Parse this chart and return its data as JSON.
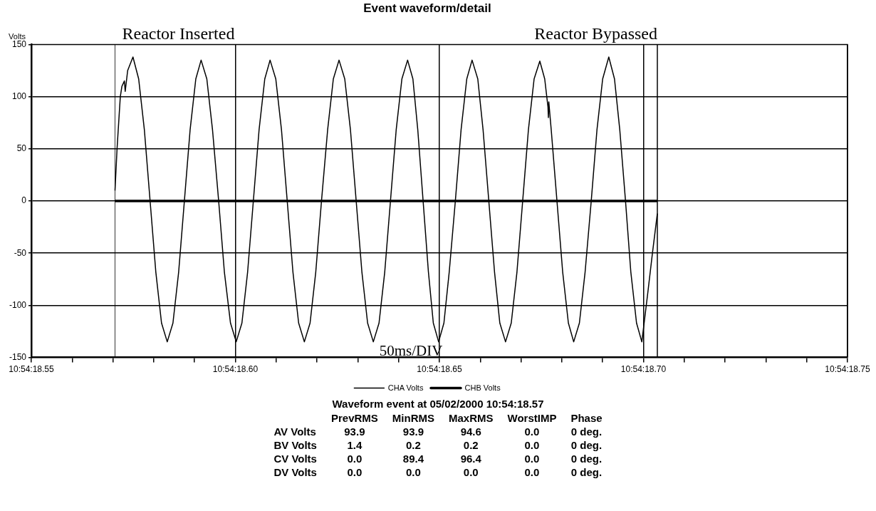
{
  "chart_data": [
    {
      "type": "line",
      "title": "Event waveform/detail",
      "ylabel": "Volts",
      "series": [
        {
          "name": "CHA Volts",
          "color": "#000000",
          "x": [
            "2000-05-02T10:54:18.5705",
            "2000-05-02T10:54:18.5710",
            "2000-05-02T10:54:18.5718",
            "2000-05-02T10:54:18.5722",
            "2000-05-02T10:54:18.5728",
            "2000-05-02T10:54:18.5730",
            "2000-05-02T10:54:18.5736",
            "2000-05-02T10:54:18.5749",
            "2000-05-02T10:54:18.5763",
            "2000-05-02T10:54:18.5777",
            "2000-05-02T10:54:18.5791",
            "2000-05-02T10:54:18.5805",
            "2000-05-02T10:54:18.5819",
            "2000-05-02T10:54:18.5833",
            "2000-05-02T10:54:18.5847",
            "2000-05-02T10:54:18.5861",
            "2000-05-02T10:54:18.5875",
            "2000-05-02T10:54:18.5889",
            "2000-05-02T10:54:18.5903",
            "2000-05-02T10:54:18.5916",
            "2000-05-02T10:54:18.5930",
            "2000-05-02T10:54:18.5944",
            "2000-05-02T10:54:18.5959",
            "2000-05-02T10:54:18.5973",
            "2000-05-02T10:54:18.5988",
            "2000-05-02T10:54:18.6002",
            "2000-05-02T10:54:18.6016",
            "2000-05-02T10:54:18.6030",
            "2000-05-02T10:54:18.6044",
            "2000-05-02T10:54:18.6058",
            "2000-05-02T10:54:18.6072",
            "2000-05-02T10:54:18.6085",
            "2000-05-02T10:54:18.6099",
            "2000-05-02T10:54:18.6113",
            "2000-05-02T10:54:18.6127",
            "2000-05-02T10:54:18.6141",
            "2000-05-02T10:54:18.6155",
            "2000-05-02T10:54:18.6169",
            "2000-05-02T10:54:18.6183",
            "2000-05-02T10:54:18.6197",
            "2000-05-02T10:54:18.6211",
            "2000-05-02T10:54:18.6226",
            "2000-05-02T10:54:18.6240",
            "2000-05-02T10:54:18.6254",
            "2000-05-02T10:54:18.6268",
            "2000-05-02T10:54:18.6282",
            "2000-05-02T10:54:18.6296",
            "2000-05-02T10:54:18.6310",
            "2000-05-02T10:54:18.6324",
            "2000-05-02T10:54:18.6338",
            "2000-05-02T10:54:18.6352",
            "2000-05-02T10:54:18.6366",
            "2000-05-02T10:54:18.6380",
            "2000-05-02T10:54:18.6394",
            "2000-05-02T10:54:18.6408",
            "2000-05-02T10:54:18.6422",
            "2000-05-02T10:54:18.6435",
            "2000-05-02T10:54:18.6447",
            "2000-05-02T10:54:18.6460",
            "2000-05-02T10:54:18.6473",
            "2000-05-02T10:54:18.6485",
            "2000-05-02T10:54:18.6498",
            "2000-05-02T10:54:18.6511",
            "2000-05-02T10:54:18.6524",
            "2000-05-02T10:54:18.6539",
            "2000-05-02T10:54:18.6553",
            "2000-05-02T10:54:18.6567",
            "2000-05-02T10:54:18.6580",
            "2000-05-02T10:54:18.6594",
            "2000-05-02T10:54:18.6607",
            "2000-05-02T10:54:18.6621",
            "2000-05-02T10:54:18.6635",
            "2000-05-02T10:54:18.6648",
            "2000-05-02T10:54:18.6662",
            "2000-05-02T10:54:18.6676",
            "2000-05-02T10:54:18.6690",
            "2000-05-02T10:54:18.6704",
            "2000-05-02T10:54:18.6718",
            "2000-05-02T10:54:18.6732",
            "2000-05-02T10:54:18.6746",
            "2000-05-02T10:54:18.6758",
            "2000-05-02T10:54:18.6766",
            "2000-05-02T10:54:18.6767",
            "2000-05-02T10:54:18.6768",
            "2000-05-02T10:54:18.6774",
            "2000-05-02T10:54:18.6788",
            "2000-05-02T10:54:18.6802",
            "2000-05-02T10:54:18.6816",
            "2000-05-02T10:54:18.6829",
            "2000-05-02T10:54:18.6843",
            "2000-05-02T10:54:18.6857",
            "2000-05-02T10:54:18.6872",
            "2000-05-02T10:54:18.6886",
            "2000-05-02T10:54:18.6900",
            "2000-05-02T10:54:18.6915",
            "2000-05-02T10:54:18.6929",
            "2000-05-02T10:54:18.6942",
            "2000-05-02T10:54:18.6956",
            "2000-05-02T10:54:18.6969",
            "2000-05-02T10:54:18.6983",
            "2000-05-02T10:54:18.6996",
            "2000-05-02T10:54:18.7010",
            "2000-05-02T10:54:18.7022",
            "2000-05-02T10:54:18.7034"
          ],
          "values": [
            10,
            50,
            100,
            110,
            115,
            105,
            125,
            138,
            117,
            68,
            0,
            -68,
            -117,
            -135,
            -117,
            -68,
            0,
            68,
            117,
            135,
            117,
            68,
            0,
            -68,
            -117,
            -135,
            -117,
            -68,
            0,
            68,
            117,
            135,
            117,
            68,
            0,
            -68,
            -117,
            -135,
            -117,
            -68,
            0,
            68,
            117,
            135,
            117,
            68,
            0,
            -68,
            -117,
            -135,
            -117,
            -68,
            0,
            68,
            117,
            135,
            117,
            68,
            0,
            -68,
            -117,
            -135,
            -117,
            -68,
            0,
            68,
            117,
            135,
            117,
            68,
            0,
            -68,
            -117,
            -135,
            -117,
            -68,
            0,
            68,
            117,
            134,
            117,
            90,
            80,
            95,
            68,
            0,
            -68,
            -117,
            -135,
            -117,
            -68,
            0,
            68,
            117,
            138,
            117,
            68,
            0,
            -68,
            -117,
            -135,
            -90,
            -50,
            -12
          ]
        },
        {
          "name": "CHB Volts",
          "color": "#000000",
          "x": [
            "2000-05-02T10:54:18.5705",
            "2000-05-02T10:54:18.7034"
          ],
          "values": [
            0,
            0
          ]
        }
      ],
      "xlim": [
        "2000-05-02T10:54:18.55",
        "2000-05-02T10:54:18.75"
      ],
      "xticks": [
        {
          "value": "2000-05-02T10:54:18.55",
          "label": "10:54:18.55"
        },
        {
          "value": "2000-05-02T10:54:18.56",
          "label": null
        },
        {
          "value": "2000-05-02T10:54:18.57",
          "label": null
        },
        {
          "value": "2000-05-02T10:54:18.58",
          "label": null
        },
        {
          "value": "2000-05-02T10:54:18.59",
          "label": null
        },
        {
          "value": "2000-05-02T10:54:18.60",
          "label": "10:54:18.60"
        },
        {
          "value": "2000-05-02T10:54:18.61",
          "label": null
        },
        {
          "value": "2000-05-02T10:54:18.62",
          "label": null
        },
        {
          "value": "2000-05-02T10:54:18.63",
          "label": null
        },
        {
          "value": "2000-05-02T10:54:18.64",
          "label": null
        },
        {
          "value": "2000-05-02T10:54:18.65",
          "label": "10:54:18.65"
        },
        {
          "value": "2000-05-02T10:54:18.66",
          "label": null
        },
        {
          "value": "2000-05-02T10:54:18.67",
          "label": null
        },
        {
          "value": "2000-05-02T10:54:18.68",
          "label": null
        },
        {
          "value": "2000-05-02T10:54:18.69",
          "label": null
        },
        {
          "value": "2000-05-02T10:54:18.70",
          "label": "10:54:18.70"
        },
        {
          "value": "2000-05-02T10:54:18.71",
          "label": null
        },
        {
          "value": "2000-05-02T10:54:18.72",
          "label": null
        },
        {
          "value": "2000-05-02T10:54:18.73",
          "label": null
        },
        {
          "value": "2000-05-02T10:54:18.74",
          "label": null
        },
        {
          "value": "2000-05-02T10:54:18.75",
          "label": "10:54:18.75"
        }
      ],
      "ylim": [
        -150,
        150
      ],
      "yticks": [
        -150,
        -100,
        -50,
        0,
        50,
        100,
        150
      ],
      "grid": true,
      "legend": "bottom",
      "marker": "none",
      "line_style": "solid",
      "ref_lines": [
        {
          "axis": "x",
          "value": "2000-05-02T10:54:18.5705",
          "label": "Reactor Inserted"
        },
        {
          "axis": "x",
          "value": "2000-05-02T10:54:18.7034",
          "label": "Reactor Bypassed"
        }
      ],
      "annotations": [
        "50ms/DIV"
      ]
    },
    {
      "type": "other",
      "title": "Waveform event at 05/02/2000 10:54:18.57",
      "categories": [
        "PrevRMS",
        "MinRMS",
        "MaxRMS",
        "WorstIMP",
        "Phase"
      ],
      "y_categories": [
        "AV Volts",
        "BV Volts",
        "CV Volts",
        "DV Volts"
      ],
      "cell_labels": [
        [
          "93.9",
          "93.9",
          "94.6",
          "0.0",
          "0 deg."
        ],
        [
          "1.4",
          "0.2",
          "0.2",
          "0.0",
          "0 deg."
        ],
        [
          "0.0",
          "89.4",
          "96.4",
          "0.0",
          "0 deg."
        ],
        [
          "0.0",
          "0.0",
          "0.0",
          "0.0",
          "0 deg."
        ]
      ]
    }
  ]
}
